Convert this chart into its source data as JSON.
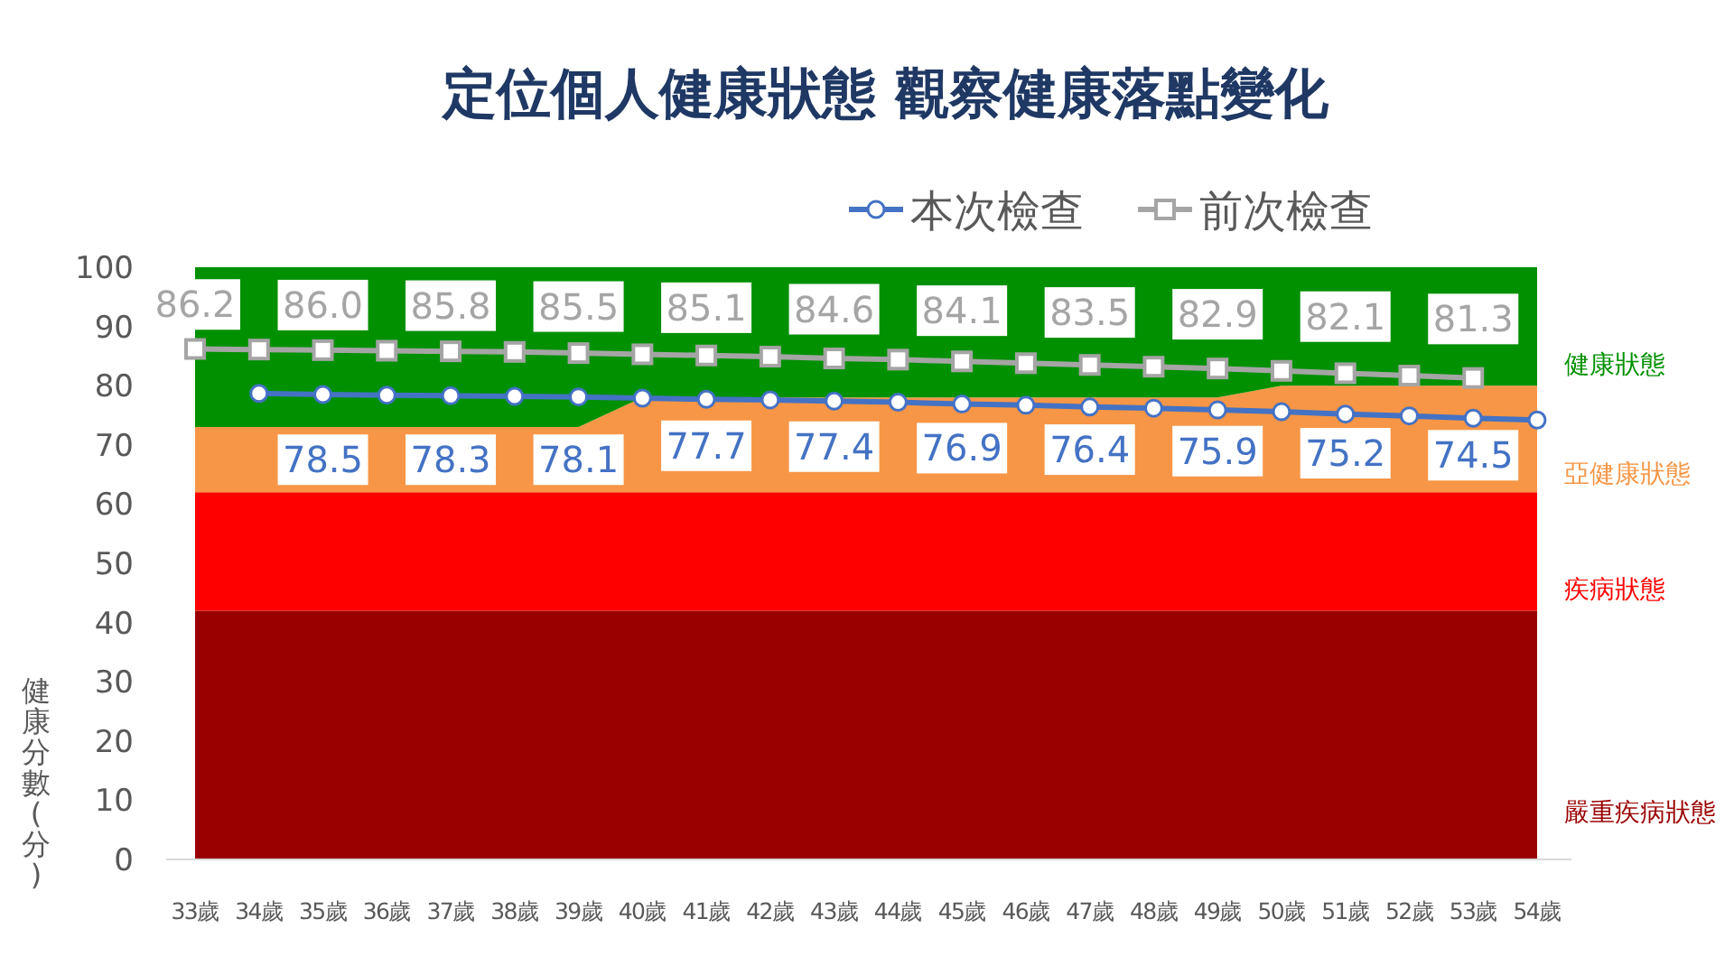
{
  "chart_data": {
    "type": "area",
    "stacked": true,
    "title": "定位個人健康狀態 觀察健康落點變化",
    "ylabel": "健康分數(分)",
    "categories": [
      "33歲",
      "34歲",
      "35歲",
      "36歲",
      "37歲",
      "38歲",
      "39歲",
      "40歲",
      "41歲",
      "42歲",
      "43歲",
      "44歲",
      "45歲",
      "46歲",
      "47歲",
      "48歲",
      "49歲",
      "50歲",
      "51歲",
      "52歲",
      "53歲",
      "54歲"
    ],
    "ylim": [
      0,
      100
    ],
    "yticks": [
      0,
      10,
      20,
      30,
      40,
      50,
      60,
      70,
      80,
      90,
      100
    ],
    "legend": "top",
    "grid": false,
    "series": [
      {
        "name": "嚴重疾病狀態",
        "color": "#990000",
        "values": [
          42,
          42,
          42,
          42,
          42,
          42,
          42,
          42,
          42,
          42,
          42,
          42,
          42,
          42,
          42,
          42,
          42,
          42,
          42,
          42,
          42,
          42
        ]
      },
      {
        "name": "疾病狀態",
        "color": "#ff0000",
        "values": [
          20,
          20,
          20,
          20,
          20,
          20,
          20,
          20,
          20,
          20,
          20,
          20,
          20,
          20,
          20,
          20,
          20,
          20,
          20,
          20,
          20,
          20
        ]
      },
      {
        "name": "亞健康狀態",
        "color": "#f79646",
        "values": [
          11,
          11,
          11,
          11,
          11,
          11,
          11,
          16,
          16,
          16,
          16,
          16,
          16,
          16,
          16,
          16,
          16,
          18,
          18,
          18,
          18,
          18
        ]
      },
      {
        "name": "健康狀態",
        "color": "#009000",
        "values": [
          27,
          27,
          27,
          27,
          27,
          27,
          27,
          22,
          22,
          22,
          22,
          22,
          22,
          22,
          22,
          22,
          22,
          20,
          20,
          20,
          20,
          20
        ]
      },
      {
        "name": "本次檢查",
        "type": "line",
        "marker": "circle",
        "color": "#4472c4",
        "values": [
          null,
          78.7,
          78.5,
          78.4,
          78.3,
          78.2,
          78.1,
          77.9,
          77.7,
          77.6,
          77.4,
          77.2,
          76.9,
          76.7,
          76.4,
          76.2,
          75.9,
          75.6,
          75.2,
          74.9,
          74.5,
          74.2
        ],
        "value_labels": [
          null,
          null,
          "78.5",
          null,
          "78.3",
          null,
          "78.1",
          null,
          "77.7",
          null,
          "77.4",
          null,
          "76.9",
          null,
          "76.4",
          null,
          "75.9",
          null,
          "75.2",
          null,
          "74.5",
          null
        ]
      },
      {
        "name": "前次檢查",
        "type": "line",
        "marker": "square",
        "color": "#a5a5a5",
        "values": [
          86.2,
          86.1,
          86.0,
          85.9,
          85.8,
          85.7,
          85.5,
          85.3,
          85.1,
          84.9,
          84.6,
          84.4,
          84.1,
          83.8,
          83.5,
          83.2,
          82.9,
          82.5,
          82.1,
          81.7,
          81.3,
          null
        ],
        "value_labels": [
          "86.2",
          null,
          "86.0",
          null,
          "85.8",
          null,
          "85.5",
          null,
          "85.1",
          null,
          "84.6",
          null,
          "84.1",
          null,
          "83.5",
          null,
          "82.9",
          null,
          "82.1",
          null,
          "81.3",
          null
        ]
      }
    ]
  }
}
